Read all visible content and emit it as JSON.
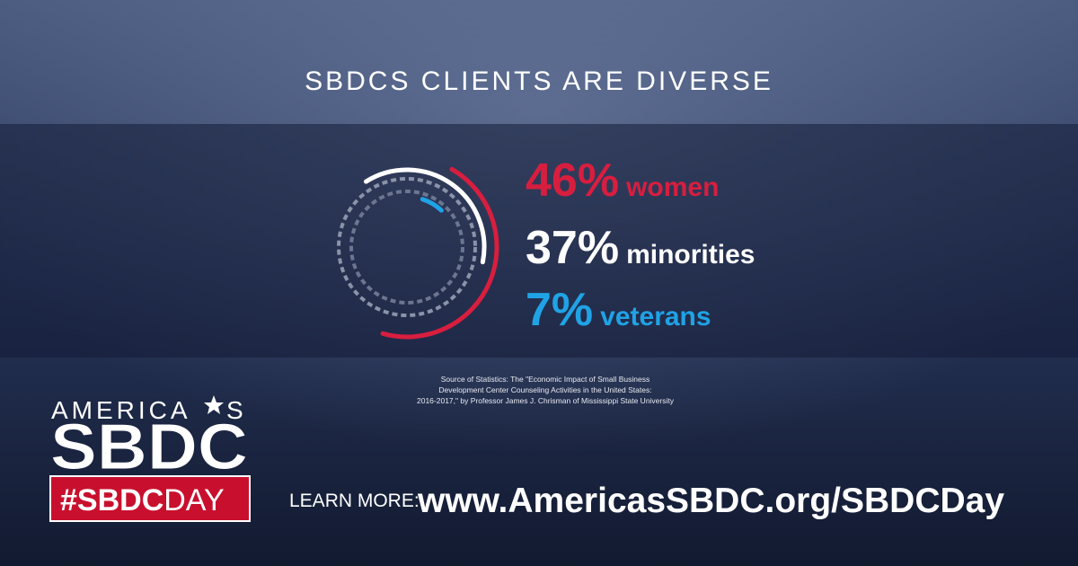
{
  "chart_data": {
    "type": "radial_bar",
    "title": "SBDCS CLIENTS ARE DIVERSE",
    "categories": [
      "women",
      "minorities",
      "veterans"
    ],
    "values": [
      46,
      37,
      7
    ],
    "value_labels": [
      "46%",
      "37%",
      "7%"
    ],
    "colors": [
      "#d81e3f",
      "#ffffff",
      "#1fa3e6"
    ],
    "source": [
      "Source of Statistics: The \"Economic Impact of Small Business",
      "Development Center Counseling Activities in the United States:",
      "2016-2017,\" by Professor James J. Chrisman of Mississippi State University"
    ]
  },
  "logo": {
    "top_left": "AMERICA",
    "top_right": "S",
    "main": "SBDC",
    "hashtag_bold": "#SBDC",
    "hashtag_light": "DAY"
  },
  "footer": {
    "cta": "LEARN MORE:",
    "url": "www.AmericasSBDC.org/SBDCDay"
  }
}
